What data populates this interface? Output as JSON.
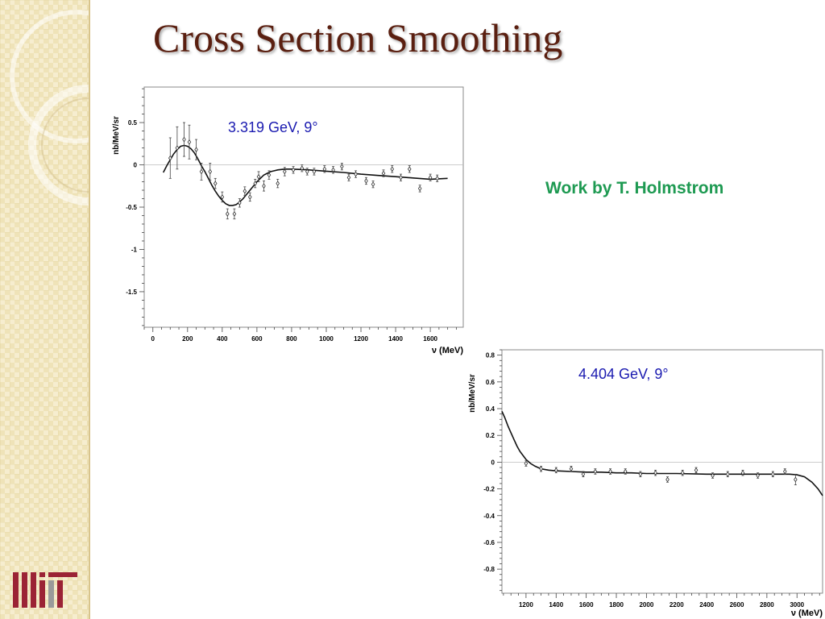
{
  "slide": {
    "title": "Cross Section Smoothing",
    "credit": "Work by  T. Holmstrom",
    "logo_text": "MIT",
    "colors": {
      "title": "#5a1f10",
      "credit": "#1e9a52",
      "annotation": "#1a1ab0",
      "sidebar": "#efe3b8",
      "logo": "#9b2335"
    }
  },
  "chart_data": [
    {
      "type": "scatter",
      "annotation": "3.319 GeV, 9°",
      "xlabel": "ν (MeV)",
      "ylabel": "nb/MeV/sr",
      "xlim": [
        -50,
        1790
      ],
      "ylim": [
        -1.92,
        0.92
      ],
      "xticks": [
        0,
        200,
        400,
        600,
        800,
        1000,
        1200,
        1400,
        1600
      ],
      "yticks": [
        0.5,
        0,
        -0.5,
        -1,
        -1.5
      ],
      "ytick_labels": [
        "0.5",
        "0",
        "-0.5",
        "-1",
        "-1.5"
      ],
      "grid": false,
      "zero_line": true,
      "series": [
        {
          "points": [
            {
              "x": 100,
              "y": 0.08,
              "err": 0.24
            },
            {
              "x": 140,
              "y": 0.2,
              "err": 0.25
            },
            {
              "x": 180,
              "y": 0.3,
              "err": 0.2
            },
            {
              "x": 210,
              "y": 0.27,
              "err": 0.2
            },
            {
              "x": 250,
              "y": 0.18,
              "err": 0.12
            },
            {
              "x": 280,
              "y": -0.08,
              "err": 0.1
            },
            {
              "x": 330,
              "y": -0.08,
              "err": 0.1
            },
            {
              "x": 360,
              "y": -0.22,
              "err": 0.06
            },
            {
              "x": 400,
              "y": -0.38,
              "err": 0.06
            },
            {
              "x": 430,
              "y": -0.58,
              "err": 0.06
            },
            {
              "x": 470,
              "y": -0.58,
              "err": 0.06
            },
            {
              "x": 500,
              "y": -0.45,
              "err": 0.05
            },
            {
              "x": 530,
              "y": -0.31,
              "err": 0.05
            },
            {
              "x": 560,
              "y": -0.38,
              "err": 0.05
            },
            {
              "x": 590,
              "y": -0.22,
              "err": 0.05
            },
            {
              "x": 610,
              "y": -0.14,
              "err": 0.06
            },
            {
              "x": 640,
              "y": -0.25,
              "err": 0.06
            },
            {
              "x": 670,
              "y": -0.12,
              "err": 0.05
            },
            {
              "x": 720,
              "y": -0.22,
              "err": 0.05
            },
            {
              "x": 760,
              "y": -0.08,
              "err": 0.05
            },
            {
              "x": 810,
              "y": -0.06,
              "err": 0.04
            },
            {
              "x": 860,
              "y": -0.04,
              "err": 0.04
            },
            {
              "x": 890,
              "y": -0.08,
              "err": 0.04
            },
            {
              "x": 930,
              "y": -0.08,
              "err": 0.04
            },
            {
              "x": 990,
              "y": -0.05,
              "err": 0.04
            },
            {
              "x": 1040,
              "y": -0.06,
              "err": 0.04
            },
            {
              "x": 1090,
              "y": -0.02,
              "err": 0.04
            },
            {
              "x": 1130,
              "y": -0.15,
              "err": 0.04
            },
            {
              "x": 1170,
              "y": -0.11,
              "err": 0.04
            },
            {
              "x": 1230,
              "y": -0.19,
              "err": 0.04
            },
            {
              "x": 1270,
              "y": -0.23,
              "err": 0.04
            },
            {
              "x": 1330,
              "y": -0.1,
              "err": 0.04
            },
            {
              "x": 1380,
              "y": -0.05,
              "err": 0.04
            },
            {
              "x": 1430,
              "y": -0.15,
              "err": 0.04
            },
            {
              "x": 1480,
              "y": -0.05,
              "err": 0.04
            },
            {
              "x": 1540,
              "y": -0.28,
              "err": 0.04
            },
            {
              "x": 1600,
              "y": -0.15,
              "err": 0.04
            },
            {
              "x": 1640,
              "y": -0.16,
              "err": 0.04
            }
          ]
        }
      ],
      "fit": {
        "x": [
          60,
          80,
          100,
          120,
          140,
          160,
          180,
          200,
          220,
          240,
          260,
          280,
          300,
          320,
          340,
          360,
          380,
          400,
          420,
          440,
          460,
          480,
          500,
          520,
          540,
          560,
          580,
          600,
          620,
          640,
          660,
          680,
          700,
          720,
          740,
          760,
          780,
          800,
          900,
          1000,
          1100,
          1200,
          1300,
          1400,
          1500,
          1600,
          1700
        ],
        "y": [
          -0.09,
          -0.01,
          0.06,
          0.13,
          0.18,
          0.22,
          0.23,
          0.22,
          0.19,
          0.14,
          0.07,
          -0.01,
          -0.08,
          -0.16,
          -0.24,
          -0.31,
          -0.37,
          -0.42,
          -0.46,
          -0.48,
          -0.48,
          -0.47,
          -0.44,
          -0.4,
          -0.35,
          -0.3,
          -0.25,
          -0.2,
          -0.16,
          -0.12,
          -0.1,
          -0.08,
          -0.07,
          -0.06,
          -0.055,
          -0.05,
          -0.05,
          -0.05,
          -0.06,
          -0.075,
          -0.09,
          -0.11,
          -0.125,
          -0.14,
          -0.155,
          -0.17,
          -0.16
        ]
      }
    },
    {
      "type": "scatter",
      "annotation": "4.404 GeV, 9°",
      "xlabel": "ν (MeV)",
      "ylabel": "nb/MeV/sr",
      "xlim": [
        1040,
        3170
      ],
      "ylim": [
        -0.98,
        0.84
      ],
      "xticks": [
        1200,
        1400,
        1600,
        1800,
        2000,
        2200,
        2400,
        2600,
        2800,
        3000
      ],
      "yticks": [
        0.8,
        0.6,
        0.4,
        0.2,
        0,
        -0.2,
        -0.4,
        -0.6,
        -0.8
      ],
      "ytick_labels": [
        "0.8",
        "0.6",
        "0.4",
        "0.2",
        "0",
        "-0.2",
        "-0.4",
        "-0.6",
        "-0.8"
      ],
      "grid": false,
      "zero_line": true,
      "series": [
        {
          "points": [
            {
              "x": 1200,
              "y": -0.01,
              "err": 0.02
            },
            {
              "x": 1300,
              "y": -0.05,
              "err": 0.02
            },
            {
              "x": 1400,
              "y": -0.06,
              "err": 0.02
            },
            {
              "x": 1500,
              "y": -0.05,
              "err": 0.02
            },
            {
              "x": 1580,
              "y": -0.09,
              "err": 0.02
            },
            {
              "x": 1660,
              "y": -0.07,
              "err": 0.02
            },
            {
              "x": 1760,
              "y": -0.07,
              "err": 0.02
            },
            {
              "x": 1860,
              "y": -0.07,
              "err": 0.02
            },
            {
              "x": 1960,
              "y": -0.09,
              "err": 0.02
            },
            {
              "x": 2060,
              "y": -0.08,
              "err": 0.02
            },
            {
              "x": 2140,
              "y": -0.13,
              "err": 0.02
            },
            {
              "x": 2240,
              "y": -0.08,
              "err": 0.02
            },
            {
              "x": 2330,
              "y": -0.06,
              "err": 0.02
            },
            {
              "x": 2440,
              "y": -0.1,
              "err": 0.02
            },
            {
              "x": 2540,
              "y": -0.09,
              "err": 0.02
            },
            {
              "x": 2640,
              "y": -0.08,
              "err": 0.02
            },
            {
              "x": 2740,
              "y": -0.1,
              "err": 0.02
            },
            {
              "x": 2840,
              "y": -0.09,
              "err": 0.02
            },
            {
              "x": 2920,
              "y": -0.07,
              "err": 0.02
            },
            {
              "x": 2990,
              "y": -0.13,
              "err": 0.04
            }
          ]
        }
      ],
      "fit": {
        "x": [
          1040,
          1060,
          1080,
          1100,
          1120,
          1140,
          1160,
          1180,
          1200,
          1230,
          1260,
          1300,
          1350,
          1400,
          1500,
          1600,
          1700,
          1800,
          1900,
          2000,
          2200,
          2400,
          2600,
          2800,
          2900,
          2950,
          3000,
          3050,
          3100,
          3140,
          3170
        ],
        "y": [
          0.38,
          0.33,
          0.27,
          0.22,
          0.17,
          0.12,
          0.08,
          0.05,
          0.02,
          -0.01,
          -0.03,
          -0.05,
          -0.06,
          -0.065,
          -0.07,
          -0.075,
          -0.075,
          -0.08,
          -0.08,
          -0.085,
          -0.085,
          -0.09,
          -0.09,
          -0.09,
          -0.09,
          -0.09,
          -0.095,
          -0.11,
          -0.15,
          -0.2,
          -0.25
        ]
      }
    }
  ]
}
